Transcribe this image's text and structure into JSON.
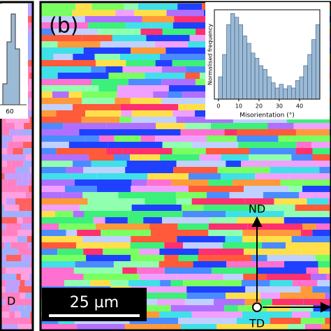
{
  "chart_data": {
    "type": "histogram",
    "xlabel": "Misorientation (°)",
    "ylabel": "Normalised frequency",
    "bins": [
      0,
      2,
      4,
      6,
      8,
      10,
      12,
      14,
      16,
      18,
      20,
      22,
      24,
      26,
      28,
      30,
      32,
      34,
      36,
      38,
      40,
      42,
      44,
      46,
      48,
      50
    ],
    "values": [
      30,
      60,
      100,
      115,
      110,
      100,
      85,
      75,
      62,
      55,
      45,
      40,
      30,
      22,
      15,
      20,
      14,
      18,
      15,
      25,
      30,
      45,
      60,
      80,
      100
    ],
    "color": "#9bbad6",
    "xlim": [
      -2,
      50
    ],
    "xticks": [
      0,
      10,
      20,
      30,
      40
    ],
    "ylim": [
      0,
      120
    ]
  },
  "panel_label": "(b)",
  "scale_bar": "25 µm",
  "axes_labels": {
    "nd": "ND",
    "td": "TD"
  },
  "left_panel": {
    "tick": "60",
    "axis_label": "D"
  }
}
